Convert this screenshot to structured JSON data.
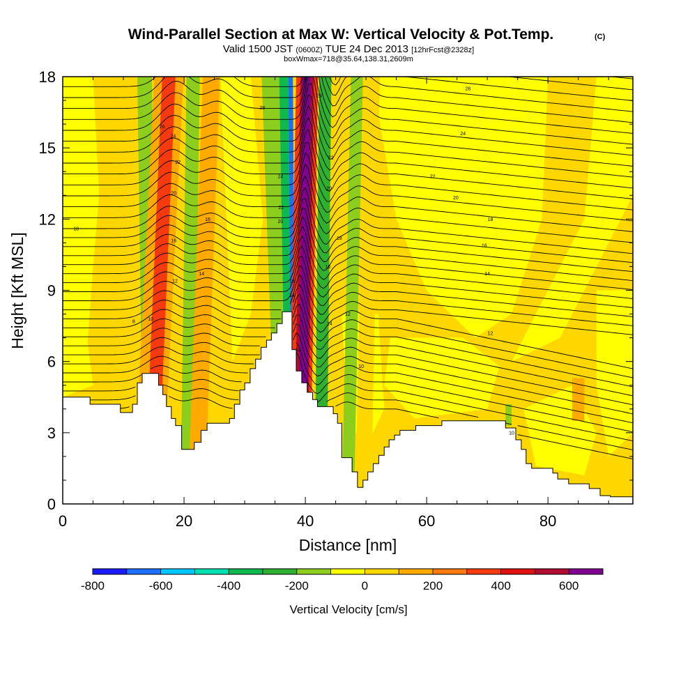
{
  "chart_data": {
    "type": "heatmap",
    "title": "Wind-Parallel Section at Max W: Vertical Velocity & Pot.Temp.",
    "title_mark": "(C)",
    "subtitle": {
      "part1": "Valid 1500 JST",
      "part2": "(0600Z)",
      "part3": "TUE 24 Dec 2013",
      "part4": "[12hrFcst@2328z]"
    },
    "subtitle2": "boxWmax=718@35.64,138.31,2609m",
    "xlabel": "Distance [nm]",
    "ylabel": "Height [Kft MSL]",
    "xlim": [
      0,
      94
    ],
    "ylim": [
      0,
      18
    ],
    "x_ticks": [
      "0",
      "20",
      "40",
      "60",
      "80"
    ],
    "x_tick_values": [
      0,
      20,
      40,
      60,
      80
    ],
    "y_ticks": [
      "0",
      "3",
      "6",
      "9",
      "12",
      "15",
      "18"
    ],
    "y_tick_values": [
      0,
      3,
      6,
      9,
      12,
      15,
      18
    ],
    "grid": false,
    "colorbar": {
      "title": "Vertical Velocity [cm/s]",
      "tick_labels": [
        "-800",
        "-600",
        "-400",
        "-200",
        "0",
        "200",
        "400",
        "600"
      ],
      "tick_values": [
        -800,
        -600,
        -400,
        -200,
        0,
        200,
        400,
        600
      ],
      "min": -800,
      "max": 700,
      "step": 100,
      "colors": [
        "#1a1aff",
        "#1e6eff",
        "#00c8ff",
        "#00e0b0",
        "#10b850",
        "#30b030",
        "#8ccd1e",
        "#ffff00",
        "#ffd700",
        "#ffaa00",
        "#ff7a10",
        "#f53a10",
        "#e01010",
        "#b00b30",
        "#800090"
      ]
    },
    "terrain_kft": [
      [
        0,
        4.5
      ],
      [
        4.5,
        4.5
      ],
      [
        4.5,
        4.2
      ],
      [
        9.5,
        4.2
      ],
      [
        9.5,
        3.85
      ],
      [
        11.5,
        3.85
      ],
      [
        11.5,
        4.2
      ],
      [
        12.3,
        4.2
      ],
      [
        12.3,
        5.1
      ],
      [
        13.1,
        5.1
      ],
      [
        13.1,
        5.5
      ],
      [
        15.8,
        5.5
      ],
      [
        15.8,
        5.0
      ],
      [
        16.5,
        5.0
      ],
      [
        16.5,
        4.6
      ],
      [
        17.1,
        4.6
      ],
      [
        17.1,
        4.1
      ],
      [
        17.9,
        4.1
      ],
      [
        17.9,
        3.6
      ],
      [
        18.6,
        3.6
      ],
      [
        18.6,
        3.3
      ],
      [
        19.6,
        3.3
      ],
      [
        19.6,
        2.3
      ],
      [
        21.7,
        2.3
      ],
      [
        21.7,
        2.6
      ],
      [
        22.8,
        2.6
      ],
      [
        22.8,
        3.1
      ],
      [
        23.8,
        3.1
      ],
      [
        23.8,
        3.4
      ],
      [
        27.5,
        3.4
      ],
      [
        27.5,
        3.6
      ],
      [
        28.3,
        3.6
      ],
      [
        28.3,
        4.2
      ],
      [
        29.2,
        4.2
      ],
      [
        29.2,
        4.8
      ],
      [
        30.0,
        4.8
      ],
      [
        30.0,
        5.1
      ],
      [
        30.9,
        5.1
      ],
      [
        30.9,
        5.7
      ],
      [
        31.8,
        5.7
      ],
      [
        31.8,
        6.1
      ],
      [
        32.7,
        6.1
      ],
      [
        32.7,
        6.6
      ],
      [
        33.6,
        6.6
      ],
      [
        33.6,
        6.9
      ],
      [
        34.4,
        6.9
      ],
      [
        34.4,
        7.2
      ],
      [
        35.3,
        7.2
      ],
      [
        35.3,
        7.6
      ],
      [
        36.2,
        7.6
      ],
      [
        36.2,
        8.1
      ],
      [
        37.8,
        8.1
      ],
      [
        37.8,
        6.5
      ],
      [
        38.5,
        6.5
      ],
      [
        38.5,
        5.6
      ],
      [
        39.4,
        5.6
      ],
      [
        39.4,
        5.1
      ],
      [
        40.3,
        5.1
      ],
      [
        40.3,
        4.7
      ],
      [
        41.2,
        4.7
      ],
      [
        41.2,
        4.4
      ],
      [
        42.0,
        4.4
      ],
      [
        42.0,
        4.1
      ],
      [
        44.6,
        4.1
      ],
      [
        44.6,
        3.8
      ],
      [
        45.3,
        3.8
      ],
      [
        45.3,
        3.4
      ],
      [
        46.0,
        3.4
      ],
      [
        46.0,
        1.95
      ],
      [
        47.7,
        1.95
      ],
      [
        47.7,
        1.35
      ],
      [
        48.6,
        1.35
      ],
      [
        48.6,
        0.7
      ],
      [
        49.5,
        0.7
      ],
      [
        49.5,
        1.0
      ],
      [
        50.3,
        1.0
      ],
      [
        50.3,
        1.35
      ],
      [
        51.2,
        1.35
      ],
      [
        51.2,
        1.7
      ],
      [
        52.1,
        1.7
      ],
      [
        52.1,
        2.05
      ],
      [
        53.0,
        2.05
      ],
      [
        53.0,
        2.4
      ],
      [
        53.8,
        2.4
      ],
      [
        53.8,
        2.7
      ],
      [
        54.7,
        2.7
      ],
      [
        54.7,
        2.9
      ],
      [
        55.6,
        2.9
      ],
      [
        55.6,
        3.1
      ],
      [
        58.2,
        3.1
      ],
      [
        58.2,
        3.3
      ],
      [
        62.5,
        3.3
      ],
      [
        62.5,
        3.5
      ],
      [
        73.0,
        3.5
      ],
      [
        73.0,
        3.2
      ],
      [
        74.7,
        3.2
      ],
      [
        74.7,
        2.7
      ],
      [
        75.6,
        2.7
      ],
      [
        75.6,
        2.3
      ],
      [
        76.4,
        2.3
      ],
      [
        76.4,
        1.7
      ],
      [
        77.3,
        1.7
      ],
      [
        77.3,
        1.5
      ],
      [
        80.8,
        1.5
      ],
      [
        80.8,
        1.3
      ],
      [
        81.6,
        1.3
      ],
      [
        81.6,
        1.05
      ],
      [
        83.4,
        1.05
      ],
      [
        83.4,
        0.85
      ],
      [
        86.8,
        0.85
      ],
      [
        86.8,
        0.65
      ],
      [
        88.6,
        0.65
      ],
      [
        88.6,
        0.35
      ],
      [
        90.3,
        0.35
      ],
      [
        90.3,
        0.3
      ],
      [
        94,
        0.3
      ]
    ],
    "updraft_bands": [
      {
        "x_top": 17.5,
        "x_bottom": 14.0,
        "half_width": 2.4,
        "w": 150
      },
      {
        "x_top": 17.5,
        "x_bottom": 14.5,
        "half_width": 1.1,
        "w": 300
      },
      {
        "x_top": 24.5,
        "x_bottom": 22.0,
        "half_width": 1.4,
        "w": 100
      },
      {
        "x_top": 40.3,
        "x_bottom": 38.9,
        "half_width": 1.8,
        "w": 300
      },
      {
        "x_top": 40.3,
        "x_bottom": 39.2,
        "half_width": 1.1,
        "w": 500
      },
      {
        "x_top": 40.2,
        "x_bottom": 39.5,
        "half_width": 0.7,
        "w": 600
      },
      {
        "x_top": 51.0,
        "x_bottom": 49.5,
        "half_width": 1.3,
        "w": 50
      },
      {
        "x_top": 85.0,
        "x_bottom": 85.0,
        "half_width": 1.0,
        "w": 150,
        "ymin": 3.5,
        "ymax": 5.3
      }
    ],
    "downdraft_bands": [
      {
        "x_top": 13.5,
        "x_bottom": 14.5,
        "half_width": 1.2,
        "w": -150
      },
      {
        "x_top": 21.5,
        "x_bottom": 20.5,
        "half_width": 1.1,
        "w": -200
      },
      {
        "x_top": 34.5,
        "x_bottom": 37.0,
        "half_width": 1.7,
        "w": -200
      },
      {
        "x_top": 36.5,
        "x_bottom": 37.7,
        "half_width": 0.8,
        "w": -400
      },
      {
        "x_top": 37.6,
        "x_bottom": 38.1,
        "half_width": 0.35,
        "w": -700
      },
      {
        "x_top": 43.3,
        "x_bottom": 42.5,
        "half_width": 1.0,
        "w": -300
      },
      {
        "x_top": 48.5,
        "x_bottom": 47.0,
        "half_width": 1.0,
        "w": -150
      },
      {
        "x_top": 73.5,
        "x_bottom": 73.5,
        "half_width": 0.5,
        "w": -150,
        "ymin": 3.3,
        "ymax": 4.2
      }
    ],
    "isentrope_labels": [
      {
        "x": 11.7,
        "y": 7.7,
        "text": "8"
      },
      {
        "x": 14.5,
        "y": 7.8,
        "text": "10"
      },
      {
        "x": 18.5,
        "y": 9.4,
        "text": "12"
      },
      {
        "x": 18.3,
        "y": 11.1,
        "text": "16"
      },
      {
        "x": 18.3,
        "y": 13.1,
        "text": "20"
      },
      {
        "x": 19.0,
        "y": 14.4,
        "text": "22"
      },
      {
        "x": 18.2,
        "y": 15.5,
        "text": "24"
      },
      {
        "x": 16.4,
        "y": 15.9,
        "text": "26"
      },
      {
        "x": 22.9,
        "y": 9.7,
        "text": "14"
      },
      {
        "x": 23.9,
        "y": 12.0,
        "text": "16"
      },
      {
        "x": 32.9,
        "y": 16.7,
        "text": "28"
      },
      {
        "x": 35.9,
        "y": 13.8,
        "text": "24"
      },
      {
        "x": 36.0,
        "y": 12.5,
        "text": "22"
      },
      {
        "x": 35.9,
        "y": 11.9,
        "text": "20"
      },
      {
        "x": 37.8,
        "y": 9.4,
        "text": "16"
      },
      {
        "x": 37.8,
        "y": 8.8,
        "text": "14"
      },
      {
        "x": 38.8,
        "y": 6.5,
        "text": "12"
      },
      {
        "x": 42.3,
        "y": 17.2,
        "text": "24"
      },
      {
        "x": 44.2,
        "y": 14.6,
        "text": "22"
      },
      {
        "x": 43.9,
        "y": 13.3,
        "text": "20"
      },
      {
        "x": 45.6,
        "y": 11.2,
        "text": "18"
      },
      {
        "x": 43.7,
        "y": 10.0,
        "text": "16"
      },
      {
        "x": 44.0,
        "y": 7.6,
        "text": "14"
      },
      {
        "x": 47.0,
        "y": 8.0,
        "text": "12"
      },
      {
        "x": 49.2,
        "y": 5.8,
        "text": "10"
      },
      {
        "x": 66.8,
        "y": 17.5,
        "text": "28"
      },
      {
        "x": 66.0,
        "y": 15.6,
        "text": "24"
      },
      {
        "x": 61.0,
        "y": 13.8,
        "text": "22"
      },
      {
        "x": 64.8,
        "y": 12.9,
        "text": "20"
      },
      {
        "x": 70.5,
        "y": 12.0,
        "text": "18"
      },
      {
        "x": 69.5,
        "y": 10.9,
        "text": "16"
      },
      {
        "x": 70.0,
        "y": 9.7,
        "text": "14"
      },
      {
        "x": 70.5,
        "y": 7.2,
        "text": "12"
      },
      {
        "x": 74.0,
        "y": 3.0,
        "text": "10"
      },
      {
        "x": 2.2,
        "y": 11.6,
        "text": "18"
      }
    ]
  }
}
